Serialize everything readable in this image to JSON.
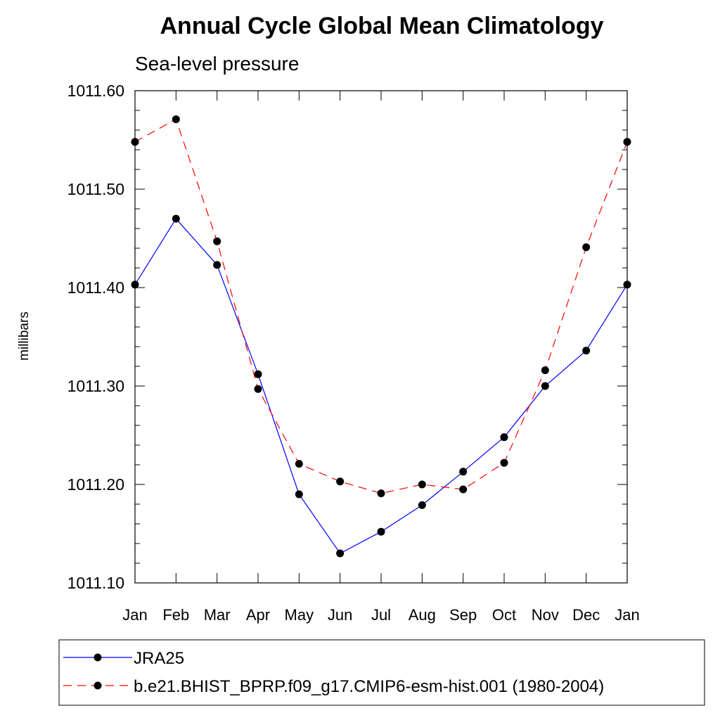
{
  "chart_data": {
    "type": "line",
    "title": "Annual Cycle Global Mean Climatology",
    "subtitle": "Sea-level pressure",
    "xlabel": "",
    "ylabel": "millibars",
    "categories": [
      "Jan",
      "Feb",
      "Mar",
      "Apr",
      "May",
      "Jun",
      "Jul",
      "Aug",
      "Sep",
      "Oct",
      "Nov",
      "Dec",
      "Jan"
    ],
    "ylim": [
      1011.1,
      1011.6
    ],
    "yticks": [
      "1011.60",
      "1011.50",
      "1011.40",
      "1011.30",
      "1011.20",
      "1011.10"
    ],
    "ytick_values": [
      1011.6,
      1011.5,
      1011.4,
      1011.3,
      1011.2,
      1011.1
    ],
    "series": [
      {
        "name": "JRA25",
        "color": "#0000ff",
        "dash": "solid",
        "values": [
          1011.403,
          1011.47,
          1011.423,
          1011.312,
          1011.19,
          1011.13,
          1011.152,
          1011.179,
          1011.213,
          1011.248,
          1011.3,
          1011.336,
          1011.403
        ]
      },
      {
        "name": "b.e21.BHIST_BPRP.f09_g17.CMIP6-esm-hist.001 (1980-2004)",
        "color": "#ff0000",
        "dash": "dashed",
        "values": [
          1011.548,
          1011.571,
          1011.447,
          1011.297,
          1011.221,
          1011.203,
          1011.191,
          1011.2,
          1011.195,
          1011.222,
          1011.316,
          1011.441,
          1011.548
        ]
      }
    ],
    "legend_position": "bottom"
  }
}
